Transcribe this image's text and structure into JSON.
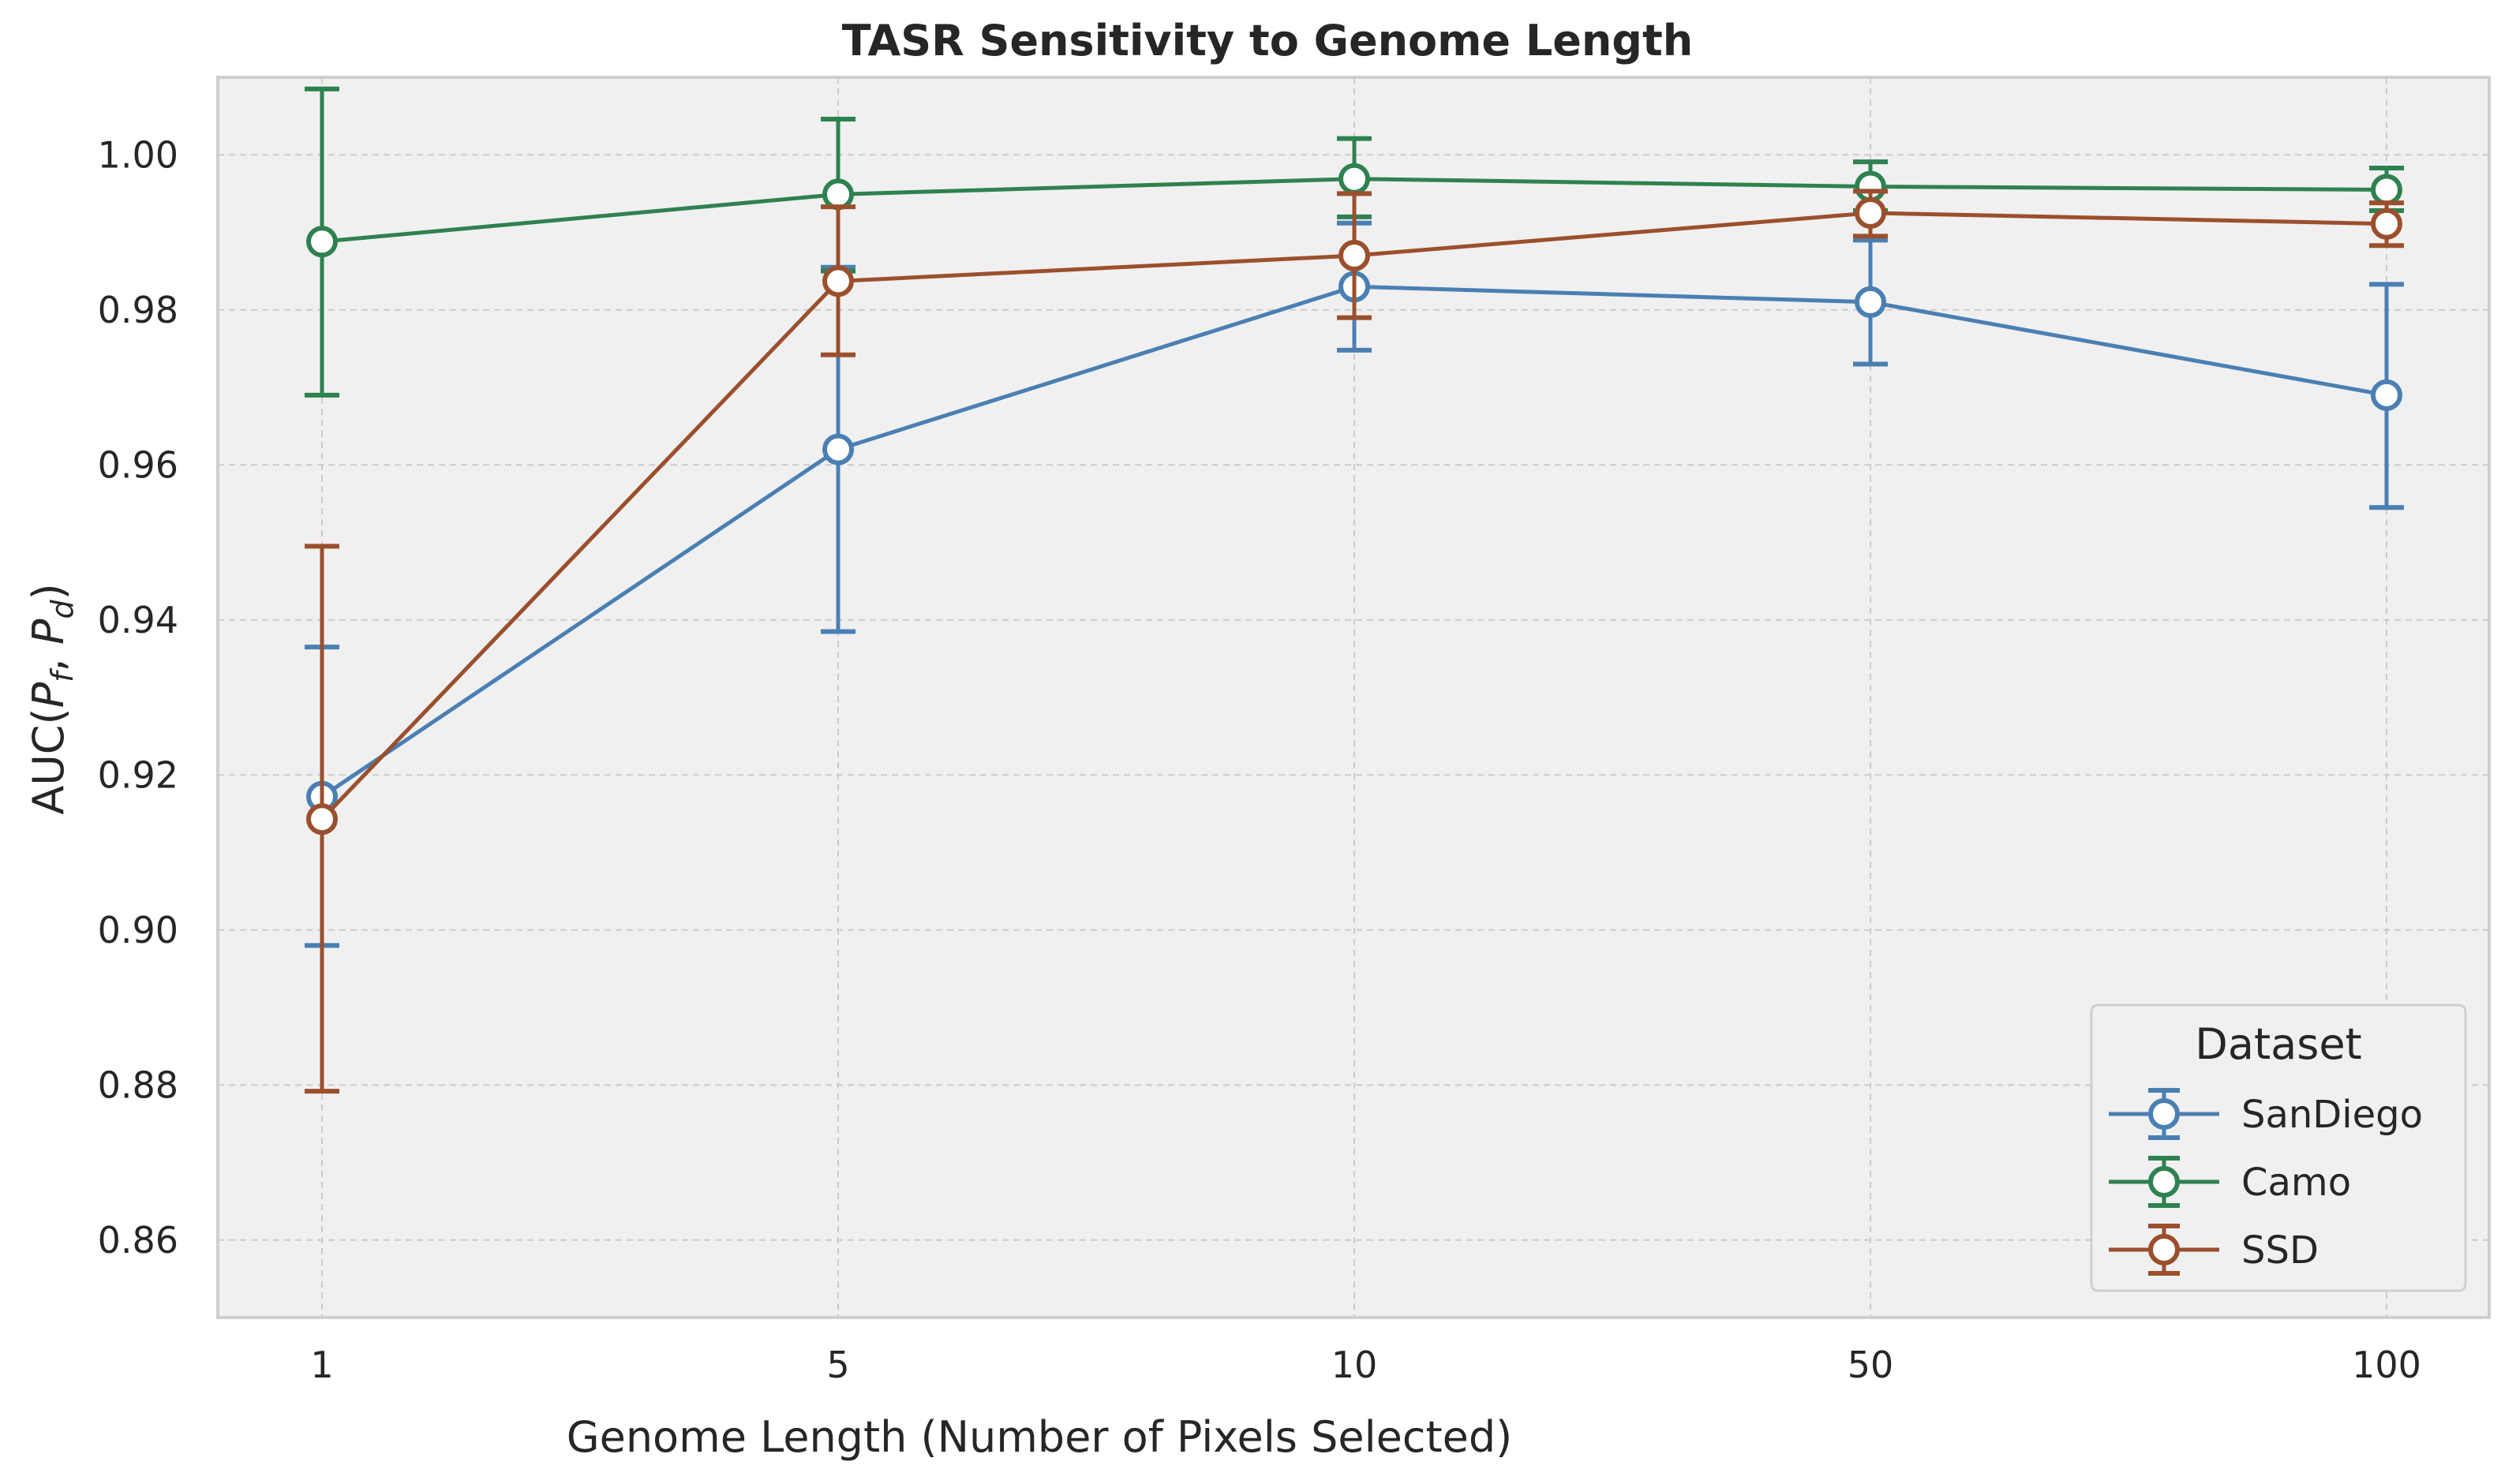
{
  "chart_data": {
    "type": "line",
    "title": "TASR Sensitivity to Genome Length",
    "xlabel": "Genome Length (Number of Pixels Selected)",
    "ylabel_prefix": "AUC(",
    "ylabel_p1": "P",
    "ylabel_sub1": "f",
    "ylabel_sep": ", ",
    "ylabel_p2": "P",
    "ylabel_sub2": "d",
    "ylabel_suffix": ")",
    "categories": [
      "1",
      "5",
      "10",
      "50",
      "100"
    ],
    "ylim": [
      0.85,
      1.01
    ],
    "yticks": [
      0.86,
      0.88,
      0.9,
      0.92,
      0.94,
      0.96,
      0.98,
      1.0
    ],
    "ytick_labels": [
      "0.86",
      "0.88",
      "0.90",
      "0.92",
      "0.94",
      "0.96",
      "0.98",
      "1.00"
    ],
    "grid": true,
    "legend": {
      "title": "Dataset",
      "placement": "lower-right"
    },
    "series": [
      {
        "name": "SanDiego",
        "color": "#4a7fb3",
        "values": [
          0.9172,
          0.962,
          0.983,
          0.981,
          0.969
        ],
        "err_low": [
          0.898,
          0.9385,
          0.9748,
          0.973,
          0.9545
        ],
        "err_high": [
          0.9365,
          0.9855,
          0.9912,
          0.989,
          0.9833
        ]
      },
      {
        "name": "Camo",
        "color": "#2e8150",
        "values": [
          0.9888,
          0.9949,
          0.9969,
          0.9959,
          0.9955
        ],
        "err_low": [
          0.969,
          0.985,
          0.992,
          0.9928,
          0.9928
        ],
        "err_high": [
          1.0085,
          1.0046,
          1.0021,
          0.9991,
          0.9983
        ]
      },
      {
        "name": "SSD",
        "color": "#9b4f2d",
        "values": [
          0.9143,
          0.9837,
          0.987,
          0.9925,
          0.9911
        ],
        "err_low": [
          0.8792,
          0.9742,
          0.979,
          0.9895,
          0.9883
        ],
        "err_high": [
          0.9495,
          0.9933,
          0.995,
          0.9953,
          0.9938
        ]
      }
    ]
  }
}
